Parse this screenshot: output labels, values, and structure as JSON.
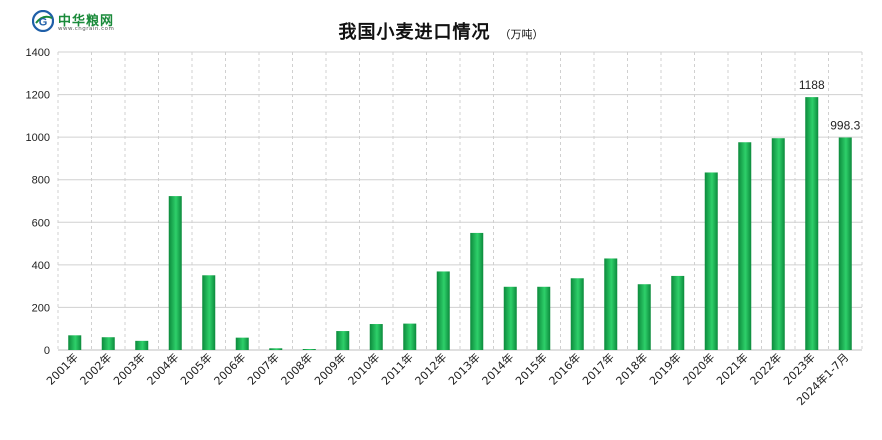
{
  "logo": {
    "name": "中华粮网",
    "url": "www.cngrain.com",
    "mark_text": "G"
  },
  "title": {
    "main": "我国小麦进口情况",
    "unit": "（万吨）"
  },
  "colors": {
    "bar_dark": "#0c8a3c",
    "bar_light": "#2ed06a",
    "grid": "#d0d0d0",
    "axis": "#bfbfbf",
    "text": "#222222",
    "logo_green": "#1a8a3a",
    "logo_blue": "#1f5fa8"
  },
  "chart_data": {
    "type": "bar",
    "title": "我国小麦进口情况",
    "unit": "万吨",
    "grid": true,
    "legend": "none",
    "ylim": [
      0,
      1400
    ],
    "yticks": [
      0,
      200,
      400,
      600,
      800,
      1000,
      1200,
      1400
    ],
    "categories": [
      "2001年",
      "2002年",
      "2003年",
      "2004年",
      "2005年",
      "2006年",
      "2007年",
      "2008年",
      "2009年",
      "2010年",
      "2011年",
      "2012年",
      "2013年",
      "2014年",
      "2015年",
      "2016年",
      "2017年",
      "2018年",
      "2019年",
      "2020年",
      "2021年",
      "2022年",
      "2023年",
      "2024年1-7月"
    ],
    "values": [
      69,
      60,
      43,
      723,
      351,
      58,
      8,
      4,
      89,
      122,
      124,
      369,
      550,
      297,
      297,
      337,
      430,
      309,
      348,
      834,
      976,
      995,
      1188,
      998.3
    ],
    "data_labels": [
      {
        "index": 22,
        "text": "1188"
      },
      {
        "index": 23,
        "text": "998.3"
      }
    ]
  }
}
